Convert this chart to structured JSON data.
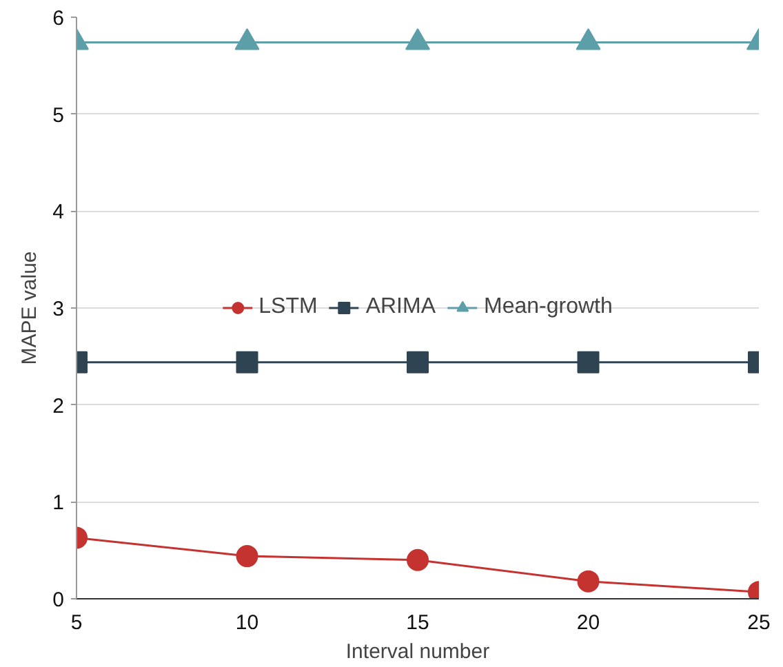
{
  "chart_data": {
    "type": "line",
    "xlabel": "Interval number",
    "ylabel": "MAPE value",
    "x": [
      5,
      10,
      15,
      20,
      25
    ],
    "series": [
      {
        "name": "LSTM",
        "color": "#c4332f",
        "marker": "circle",
        "values": [
          0.63,
          0.44,
          0.4,
          0.18,
          0.07
        ]
      },
      {
        "name": "ARIMA",
        "color": "#2e4453",
        "marker": "square",
        "values": [
          2.44,
          2.44,
          2.44,
          2.44,
          2.44
        ]
      },
      {
        "name": "Mean-growth",
        "color": "#5c9fa8",
        "marker": "triangle",
        "values": [
          5.74,
          5.74,
          5.74,
          5.74,
          5.74
        ]
      }
    ],
    "xlim": [
      5,
      25
    ],
    "xticks": [
      5,
      10,
      15,
      20,
      25
    ],
    "ylim": [
      0,
      6
    ],
    "yticks": [
      0,
      1,
      2,
      3,
      4,
      5,
      6
    ],
    "grid": "y",
    "legend": "center",
    "line_style": "solid"
  }
}
